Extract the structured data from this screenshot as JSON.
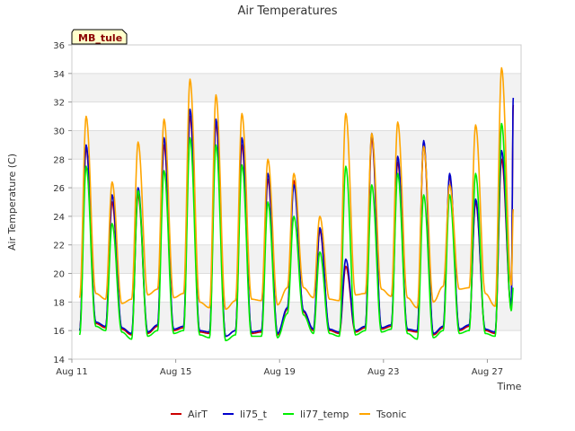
{
  "chart_data": {
    "type": "line",
    "title": "Air Temperatures",
    "xlabel": "Time",
    "ylabel": "Air Temperature (C)",
    "site_label": "MB_tule",
    "xlim": [
      0,
      17.3
    ],
    "ylim": [
      14,
      36
    ],
    "x_ticks": [
      {
        "value": 0,
        "label": "Aug 11"
      },
      {
        "value": 4,
        "label": "Aug 15"
      },
      {
        "value": 8,
        "label": "Aug 19"
      },
      {
        "value": 12,
        "label": "Aug 23"
      },
      {
        "value": 16,
        "label": "Aug 27"
      }
    ],
    "y_ticks": [
      14,
      16,
      18,
      20,
      22,
      24,
      26,
      28,
      30,
      32,
      34,
      36
    ],
    "grid": true,
    "legend_position": "bottom",
    "series": [
      {
        "name": "AirT",
        "color": "#cc0000",
        "x": [
          0.3,
          0.55,
          0.92,
          1.3,
          1.55,
          1.92,
          2.3,
          2.55,
          2.92,
          3.3,
          3.55,
          3.92,
          4.3,
          4.55,
          4.92,
          5.3,
          5.55,
          5.92,
          6.3,
          6.55,
          6.92,
          7.3,
          7.55,
          7.92,
          8.3,
          8.55,
          8.92,
          9.3,
          9.55,
          9.92,
          10.3,
          10.55,
          10.92,
          11.3,
          11.55,
          11.92,
          12.3,
          12.55,
          12.92,
          13.3,
          13.55,
          13.92,
          14.3,
          14.55,
          14.92,
          15.3,
          15.55,
          15.92,
          16.3,
          16.55,
          16.92,
          17.0
        ],
        "y": [
          16.0,
          28.8,
          16.5,
          16.2,
          25.0,
          16.1,
          15.7,
          25.5,
          15.8,
          16.3,
          29.0,
          16.0,
          16.2,
          31.0,
          15.9,
          15.8,
          30.5,
          15.6,
          16.0,
          29.0,
          15.8,
          15.9,
          26.6,
          15.7,
          17.5,
          26.5,
          17.3,
          16.0,
          23.0,
          16.0,
          15.8,
          20.5,
          15.9,
          16.2,
          29.5,
          16.1,
          16.3,
          27.8,
          16.0,
          15.9,
          29.0,
          15.7,
          16.2,
          26.8,
          16.0,
          16.3,
          25.0,
          16.0,
          15.8,
          28.0,
          17.6,
          31.8
        ]
      },
      {
        "name": "li75_t",
        "color": "#0000cc",
        "x": [
          0.3,
          0.55,
          0.92,
          1.3,
          1.55,
          1.92,
          2.3,
          2.55,
          2.92,
          3.3,
          3.55,
          3.92,
          4.3,
          4.55,
          4.92,
          5.3,
          5.55,
          5.92,
          6.3,
          6.55,
          6.92,
          7.3,
          7.55,
          7.92,
          8.3,
          8.55,
          8.92,
          9.3,
          9.55,
          9.92,
          10.3,
          10.55,
          10.92,
          11.3,
          11.55,
          11.92,
          12.3,
          12.55,
          12.92,
          13.3,
          13.55,
          13.92,
          14.3,
          14.55,
          14.92,
          15.3,
          15.55,
          15.92,
          16.3,
          16.55,
          16.92,
          17.0
        ],
        "y": [
          16.0,
          29.0,
          16.6,
          16.3,
          25.5,
          16.2,
          15.8,
          26.0,
          15.9,
          16.4,
          29.5,
          16.1,
          16.3,
          31.5,
          16.0,
          15.9,
          30.8,
          15.6,
          16.0,
          29.5,
          15.9,
          16.0,
          27.0,
          15.8,
          17.6,
          26.2,
          17.4,
          16.1,
          23.2,
          16.1,
          15.9,
          21.0,
          16.0,
          16.3,
          29.8,
          16.2,
          16.4,
          28.2,
          16.1,
          16.0,
          29.3,
          15.8,
          16.3,
          27.0,
          16.1,
          16.4,
          25.2,
          16.1,
          15.9,
          28.6,
          17.7,
          32.3
        ]
      },
      {
        "name": "li77_temp",
        "color": "#00ee00",
        "x": [
          0.3,
          0.55,
          0.92,
          1.3,
          1.55,
          1.92,
          2.3,
          2.55,
          2.92,
          3.3,
          3.55,
          3.92,
          4.3,
          4.55,
          4.92,
          5.3,
          5.55,
          5.92,
          6.3,
          6.55,
          6.92,
          7.3,
          7.55,
          7.92,
          8.3,
          8.55,
          8.92,
          9.3,
          9.55,
          9.92,
          10.3,
          10.55,
          10.92,
          11.3,
          11.55,
          11.92,
          12.3,
          12.55,
          12.92,
          13.3,
          13.55,
          13.92,
          14.3,
          14.55,
          14.92,
          15.3,
          15.55,
          15.92,
          16.3,
          16.55,
          16.92,
          17.0
        ],
        "y": [
          15.7,
          27.5,
          16.3,
          16.0,
          23.5,
          15.9,
          15.4,
          25.8,
          15.6,
          16.0,
          27.2,
          15.8,
          16.0,
          29.5,
          15.7,
          15.5,
          29.0,
          15.3,
          15.7,
          27.6,
          15.6,
          15.6,
          25.0,
          15.5,
          17.2,
          24.0,
          17.1,
          15.8,
          21.5,
          15.8,
          15.6,
          27.5,
          15.7,
          16.0,
          26.2,
          15.9,
          16.1,
          27.0,
          15.8,
          15.4,
          25.5,
          15.5,
          16.0,
          25.5,
          15.8,
          16.0,
          27.0,
          15.8,
          15.6,
          30.5,
          17.4,
          19.0
        ]
      },
      {
        "name": "Tsonic",
        "color": "#ffa500",
        "x": [
          0.3,
          0.55,
          0.92,
          1.3,
          1.55,
          1.92,
          2.3,
          2.55,
          2.92,
          3.3,
          3.55,
          3.92,
          4.3,
          4.55,
          4.92,
          5.3,
          5.55,
          5.92,
          6.3,
          6.55,
          6.92,
          7.3,
          7.55,
          7.92,
          8.3,
          8.55,
          8.92,
          9.3,
          9.55,
          9.92,
          10.3,
          10.55,
          10.92,
          11.3,
          11.55,
          11.92,
          12.3,
          12.55,
          12.92,
          13.3,
          13.55,
          13.92,
          14.3,
          14.55,
          14.92,
          15.3,
          15.55,
          15.92,
          16.3,
          16.55,
          16.92,
          17.0
        ],
        "y": [
          18.3,
          31.0,
          18.6,
          18.2,
          26.4,
          17.9,
          18.2,
          29.2,
          18.5,
          18.9,
          30.8,
          18.3,
          18.6,
          33.6,
          18.0,
          17.6,
          32.5,
          17.5,
          18.1,
          31.2,
          18.2,
          18.1,
          28.0,
          17.8,
          19.0,
          27.0,
          19.0,
          18.3,
          24.0,
          18.2,
          18.1,
          31.2,
          18.5,
          18.6,
          29.8,
          18.9,
          18.4,
          30.6,
          18.3,
          17.6,
          28.9,
          18.0,
          19.1,
          26.2,
          18.9,
          19.0,
          30.4,
          18.6,
          17.7,
          34.4,
          19.2,
          24.5
        ]
      }
    ]
  }
}
